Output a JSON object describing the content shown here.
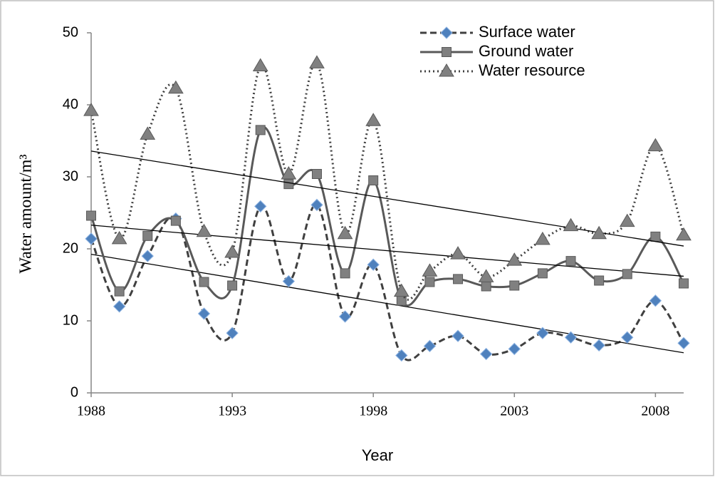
{
  "chart_data": {
    "type": "line",
    "x_label": "Year",
    "y_label": "Water amount/m³",
    "x": [
      1988,
      1989,
      1990,
      1991,
      1992,
      1993,
      1994,
      1995,
      1996,
      1997,
      1998,
      1999,
      2000,
      2001,
      2002,
      2003,
      2004,
      2005,
      2006,
      2007,
      2008,
      2009
    ],
    "xlim": [
      1988,
      2009
    ],
    "xticks": [
      1988,
      1993,
      1998,
      2003,
      2008
    ],
    "ylim": [
      0,
      50
    ],
    "yticks": [
      0,
      10,
      20,
      30,
      40,
      50
    ],
    "legend": "top-right",
    "trendline": "linear",
    "smooth": true,
    "series": [
      {
        "name": "Surface water",
        "color": "#4f81bd",
        "line_color": "#404040",
        "line_style": "dashed",
        "marker": "diamond",
        "values": [
          21.4,
          12,
          19,
          24.2,
          11,
          8.3,
          25.9,
          15.5,
          26.1,
          10.6,
          17.8,
          5.2,
          6.5,
          7.9,
          5.4,
          6.1,
          8.3,
          7.7,
          6.6,
          7.7,
          12.8,
          6.9
        ]
      },
      {
        "name": "Ground water",
        "color": "#808080",
        "line_color": "#595959",
        "line_style": "solid",
        "marker": "square",
        "values": [
          24.6,
          14.1,
          21.8,
          23.9,
          15.4,
          14.9,
          36.5,
          29,
          30.4,
          16.6,
          29.5,
          12.8,
          15.4,
          15.8,
          14.8,
          14.9,
          16.6,
          18.3,
          15.6,
          16.5,
          21.7,
          15.2
        ]
      },
      {
        "name": "Water resource",
        "color": "#808080",
        "line_color": "#404040",
        "line_style": "dotted",
        "marker": "triangle",
        "values": [
          39.2,
          21.4,
          35.9,
          42.3,
          22.4,
          19.5,
          45.4,
          30.4,
          45.8,
          22.1,
          37.8,
          14.1,
          16.9,
          19.3,
          16.1,
          18.4,
          21.3,
          23.2,
          22.1,
          23.8,
          34.3,
          21.9
        ]
      }
    ]
  }
}
